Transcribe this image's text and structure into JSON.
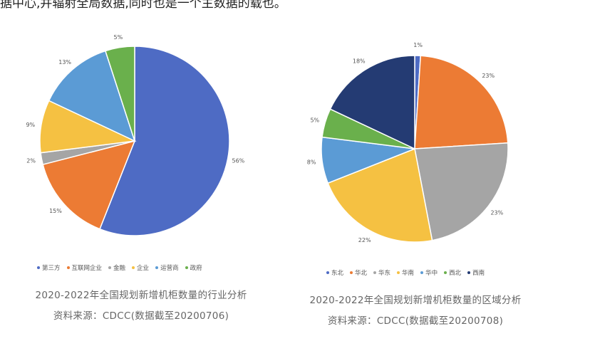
{
  "top_text": "据中心,并辐射全局数据,同时也是一个主数据的载也。",
  "chart_data": [
    {
      "type": "pie",
      "title": "2020-2022年全国规划新增机柜数量的行业分析",
      "source": "资料来源：CDCC(数据截至20200706)",
      "unit": "%",
      "slices": [
        {
          "label": "第三方",
          "value": 56,
          "color": "#4e6bc4"
        },
        {
          "label": "互联网企业",
          "value": 15,
          "color": "#ec7b34"
        },
        {
          "label": "金融",
          "value": 2,
          "color": "#a5a5a5"
        },
        {
          "label": "企业",
          "value": 9,
          "color": "#f5c142"
        },
        {
          "label": "运营商",
          "value": 13,
          "color": "#5b9bd5"
        },
        {
          "label": "政府",
          "value": 5,
          "color": "#6ab04c"
        }
      ],
      "legend_position": "bottom"
    },
    {
      "type": "pie",
      "title": "2020-2022年全国规划新增机柜数量的区域分析",
      "source": "资料来源：CDCC(数据截至20200708)",
      "unit": "%",
      "slices": [
        {
          "label": "东北",
          "value": 1,
          "color": "#4e6bc4"
        },
        {
          "label": "华北",
          "value": 23,
          "color": "#ec7b34"
        },
        {
          "label": "华东",
          "value": 23,
          "color": "#a5a5a5"
        },
        {
          "label": "华南",
          "value": 22,
          "color": "#f5c142"
        },
        {
          "label": "华中",
          "value": 8,
          "color": "#5b9bd5"
        },
        {
          "label": "西北",
          "value": 5,
          "color": "#6ab04c"
        },
        {
          "label": "西南",
          "value": 18,
          "color": "#243b73"
        }
      ],
      "legend_position": "bottom"
    }
  ]
}
